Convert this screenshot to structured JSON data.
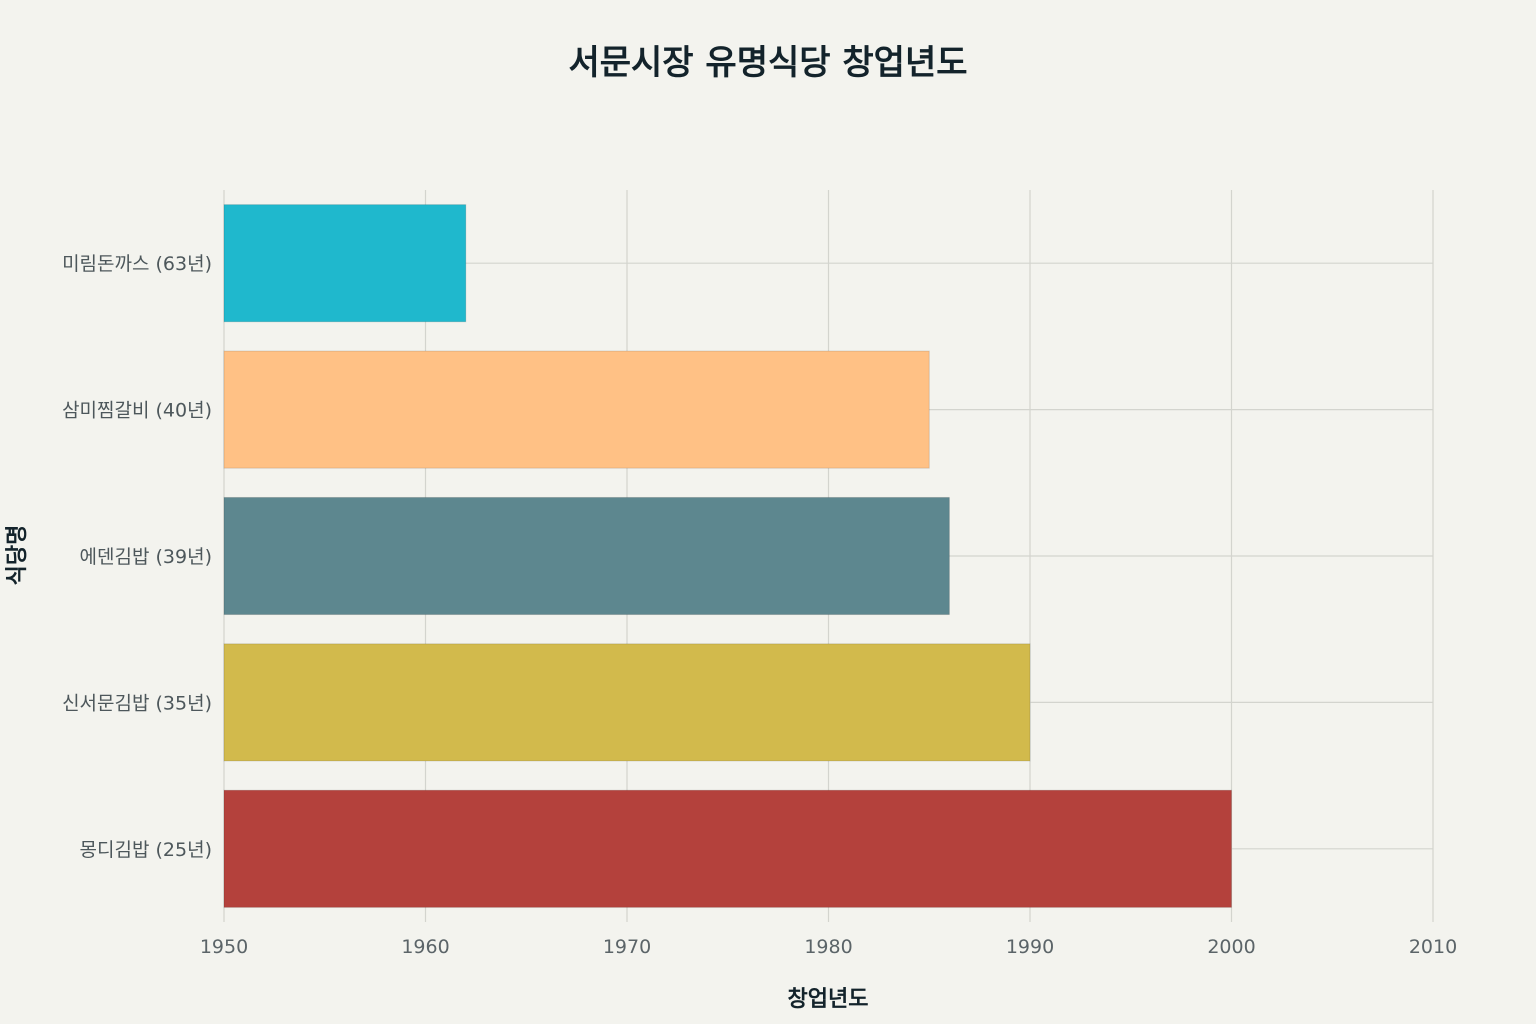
{
  "chart_data": {
    "type": "bar",
    "orientation": "horizontal",
    "title": "서문시장 유명식당 창업년도",
    "xlabel": "창업년도",
    "ylabel": "식당명",
    "xlim": [
      1950,
      2010
    ],
    "xticks": [
      "1950",
      "1960",
      "1970",
      "1980",
      "1990",
      "2000",
      "2010"
    ],
    "grid": true,
    "categories": [
      "미림돈까스 (63년)",
      "삼미찜갈비 (40년)",
      "에덴김밥 (39년)",
      "신서문김밥 (35년)",
      "몽디김밥 (25년)"
    ],
    "values": [
      1962,
      1985,
      1986,
      1990,
      2000
    ],
    "colors": [
      "#1fb8cd",
      "#ffc185",
      "#5d878f",
      "#d2ba4c",
      "#b4413c"
    ]
  }
}
